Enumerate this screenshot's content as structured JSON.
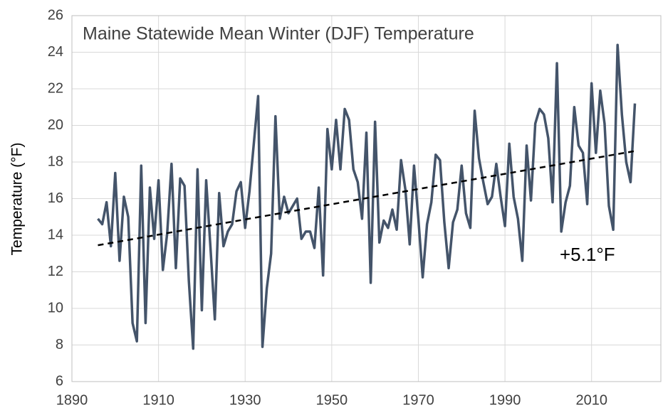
{
  "chart_data": {
    "type": "line",
    "title": "Maine Statewide Mean Winter (DJF) Temperature",
    "y_label": "Temperature (°F)",
    "annotation": "+5.1°F",
    "x": [
      1896,
      1897,
      1898,
      1899,
      1900,
      1901,
      1902,
      1903,
      1904,
      1905,
      1906,
      1907,
      1908,
      1909,
      1910,
      1911,
      1912,
      1913,
      1914,
      1915,
      1916,
      1917,
      1918,
      1919,
      1920,
      1921,
      1922,
      1923,
      1924,
      1925,
      1926,
      1927,
      1928,
      1929,
      1930,
      1931,
      1932,
      1933,
      1934,
      1935,
      1936,
      1937,
      1938,
      1939,
      1940,
      1941,
      1942,
      1943,
      1944,
      1945,
      1946,
      1947,
      1948,
      1949,
      1950,
      1951,
      1952,
      1953,
      1954,
      1955,
      1956,
      1957,
      1958,
      1959,
      1960,
      1961,
      1962,
      1963,
      1964,
      1965,
      1966,
      1967,
      1968,
      1969,
      1970,
      1971,
      1972,
      1973,
      1974,
      1975,
      1976,
      1977,
      1978,
      1979,
      1980,
      1981,
      1982,
      1983,
      1984,
      1985,
      1986,
      1987,
      1988,
      1989,
      1990,
      1991,
      1992,
      1993,
      1994,
      1995,
      1996,
      1997,
      1998,
      1999,
      2000,
      2001,
      2002,
      2003,
      2004,
      2005,
      2006,
      2007,
      2008,
      2009,
      2010,
      2011,
      2012,
      2013,
      2014,
      2015,
      2016,
      2017,
      2018,
      2019,
      2020
    ],
    "series": [
      {
        "color": "#44546a",
        "values": [
          14.9,
          14.6,
          15.8,
          13.4,
          17.4,
          12.6,
          16.1,
          15.0,
          9.2,
          8.2,
          17.8,
          9.2,
          16.6,
          13.8,
          17.0,
          12.1,
          14.1,
          17.9,
          12.2,
          17.1,
          16.7,
          11.5,
          7.8,
          17.6,
          9.9,
          17.0,
          13.3,
          9.4,
          16.3,
          13.4,
          14.2,
          14.6,
          16.4,
          16.9,
          14.4,
          16.4,
          19.0,
          21.6,
          7.9,
          11.1,
          13.0,
          20.5,
          14.9,
          16.1,
          15.2,
          15.6,
          16.0,
          13.8,
          14.2,
          14.2,
          13.3,
          16.6,
          11.8,
          19.8,
          17.6,
          20.3,
          17.6,
          20.9,
          20.3,
          17.6,
          16.9,
          14.9,
          19.6,
          11.4,
          20.2,
          13.6,
          14.8,
          14.4,
          15.4,
          14.3,
          18.1,
          16.5,
          13.5,
          17.8,
          14.9,
          11.7,
          14.6,
          15.8,
          18.4,
          18.1,
          14.7,
          12.2,
          14.7,
          15.4,
          17.8,
          15.2,
          14.4,
          20.8,
          18.2,
          16.9,
          15.7,
          16.1,
          17.9,
          16.1,
          14.5,
          19.0,
          16.1,
          14.9,
          12.6,
          18.9,
          15.9,
          20.1,
          20.9,
          20.6,
          19.3,
          15.8,
          23.4,
          14.2,
          15.8,
          16.7,
          21.0,
          18.9,
          18.5,
          15.7,
          22.3,
          18.5,
          21.9,
          20.1,
          15.6,
          14.3,
          24.4,
          20.6,
          18.0,
          16.9,
          21.2
        ]
      }
    ],
    "trend_line": {
      "x": [
        1896,
        2020
      ],
      "values": [
        13.45,
        18.6
      ],
      "color": "#000000",
      "dashed": true
    },
    "xlim": [
      1890,
      2026
    ],
    "xticks": [
      1890,
      1910,
      1930,
      1950,
      1970,
      1990,
      2010
    ],
    "ylim": [
      6,
      26
    ],
    "yticks": [
      6,
      8,
      10,
      12,
      14,
      16,
      18,
      20,
      22,
      24,
      26
    ],
    "grid": true
  }
}
